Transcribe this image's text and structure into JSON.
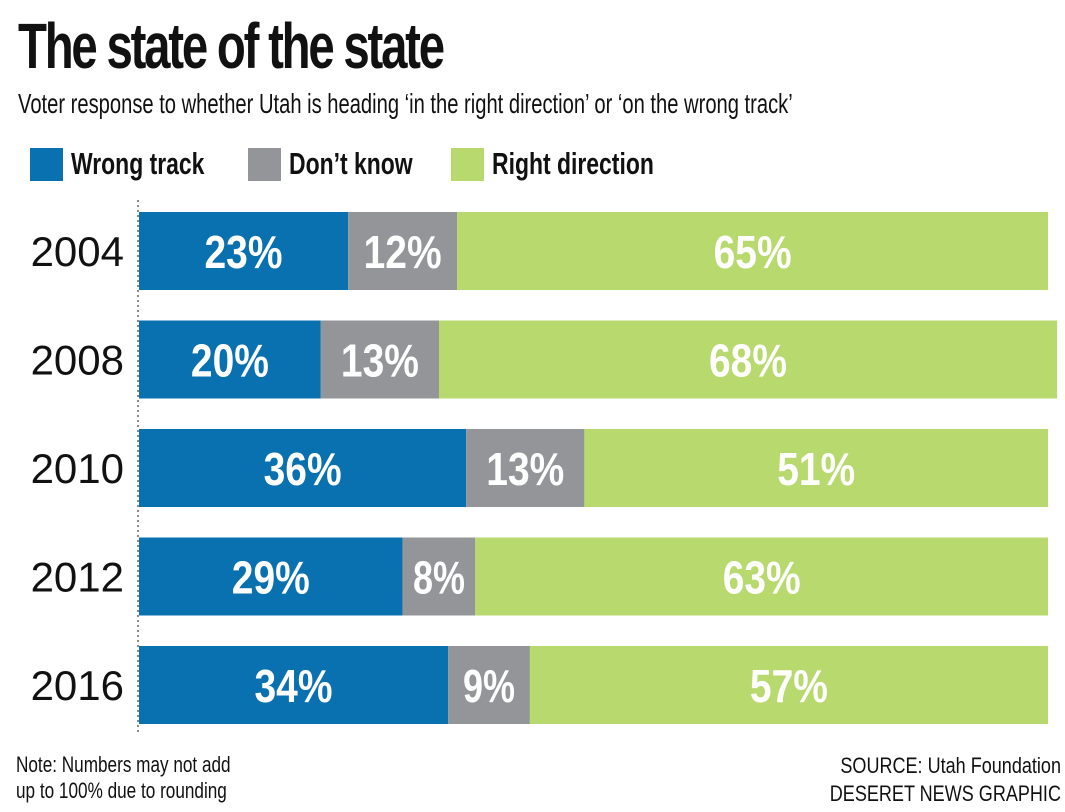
{
  "title": "The state of the state",
  "subtitle": "Voter response to whether Utah is heading ‘in the right direction’ or ‘on the wrong track’",
  "legend": [
    {
      "label": "Wrong track",
      "color": "#0a71b0"
    },
    {
      "label": "Don’t know",
      "color": "#939598"
    },
    {
      "label": "Right direction",
      "color": "#b8d96e"
    }
  ],
  "chart_data": {
    "type": "bar",
    "orientation": "horizontal",
    "stacked": true,
    "categories": [
      "2004",
      "2008",
      "2010",
      "2012",
      "2016"
    ],
    "series": [
      {
        "name": "Wrong track",
        "color": "#0a71b0",
        "values": [
          23,
          20,
          36,
          29,
          34
        ],
        "labels": [
          "23%",
          "20%",
          "36%",
          "29%",
          "34%"
        ]
      },
      {
        "name": "Don’t know",
        "color": "#939598",
        "values": [
          12,
          13,
          13,
          8,
          9
        ],
        "labels": [
          "12%",
          "13%",
          "13%",
          "8%",
          "9%"
        ]
      },
      {
        "name": "Right direction",
        "color": "#b8d96e",
        "values": [
          65,
          68,
          51,
          63,
          57
        ],
        "labels": [
          "65%",
          "68%",
          "51%",
          "63%",
          "57%"
        ]
      }
    ],
    "xlim": [
      0,
      100
    ],
    "grid": false,
    "legend_position": "top-left"
  },
  "note": {
    "line1": "Note: Numbers may not add",
    "line2": "up to 100% due to rounding"
  },
  "source": {
    "line1": "SOURCE: Utah Foundation",
    "line2": "DESERET NEWS GRAPHIC"
  }
}
